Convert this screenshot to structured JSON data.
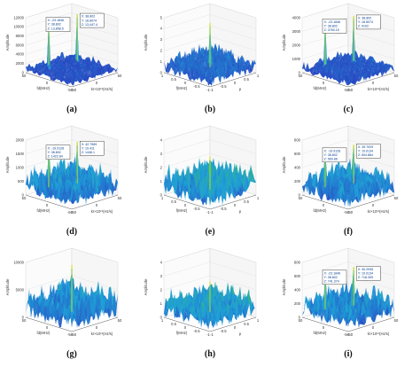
{
  "figure": {
    "colors": {
      "low": "#2a3bbf",
      "mid": "#1fa0d8",
      "high": "#35b779",
      "peak": "#f2e626",
      "tip_box": "#ffffff",
      "tip_border": "#1a1a1a"
    }
  },
  "chart_data": [
    {
      "type": "surface",
      "label": "(a)",
      "zlabel": "Amplitude",
      "xlabel": "fd(MHz)",
      "ylabel": "kr×10¹²(Hz/s)",
      "zticks": [
        "0",
        "2000",
        "4000",
        "6000",
        "8000",
        "10000",
        "12000"
      ],
      "xticks": [
        "-50",
        "0",
        "50"
      ],
      "yticks": [
        "-50",
        "0",
        "50"
      ],
      "noise_level": 0.18,
      "peak_level": 0.95,
      "datatips": [
        {
          "lines": [
            "X: -23.1846",
            "Y: 38.802",
            "Z: 13,858.5"
          ]
        },
        {
          "lines": [
            "X: 38.802",
            "Y: 18.8074",
            "Z: 13,447.4"
          ]
        }
      ]
    },
    {
      "type": "surface",
      "label": "(b)",
      "zlabel": "Amplitude",
      "xlabel": "f(MHz)",
      "ylabel": "p",
      "zticks": [
        "0",
        "1",
        "2",
        "3",
        "4",
        "5"
      ],
      "xticks": [
        "-1",
        "-0.5",
        "0",
        "0.5",
        "1"
      ],
      "yticks": [
        "-1",
        "-0.5",
        "0",
        "0.5",
        "1"
      ],
      "noise_level": 0.35,
      "peak_level": 0.9,
      "datatips": []
    },
    {
      "type": "surface",
      "label": "(c)",
      "zlabel": "Amplitude",
      "xlabel": "fd(MHz)",
      "ylabel": "kr×10¹²(Hz/s)",
      "zticks": [
        "0",
        "1000",
        "2000",
        "3000",
        "4000"
      ],
      "xticks": [
        "-50",
        "0",
        "50"
      ],
      "yticks": [
        "-50",
        "0",
        "50"
      ],
      "noise_level": 0.22,
      "peak_level": 0.92,
      "datatips": [
        {
          "lines": [
            "X: -23.1846",
            "Y: 38.802",
            "Z: 3760.15"
          ]
        },
        {
          "lines": [
            "X: 38.802",
            "Y: 18.8074",
            "Z: 4102"
          ]
        }
      ]
    },
    {
      "type": "surface",
      "label": "(d)",
      "zlabel": "Amplitude",
      "xlabel": "fd(MHz)",
      "ylabel": "kr×10¹²(Hz/s)",
      "zticks": [
        "0",
        "500",
        "1000",
        "1500",
        "2000"
      ],
      "xticks": [
        "-50",
        "0",
        "50"
      ],
      "yticks": [
        "-50",
        "0",
        "50"
      ],
      "noise_level": 0.55,
      "peak_level": 0.85,
      "datatips": [
        {
          "lines": [
            "X: -19.9128",
            "Y: 38.802",
            "Z: 1422.84"
          ]
        },
        {
          "lines": [
            "X: 42.7969",
            "Y: 19.411",
            "Z: 1446.1"
          ]
        }
      ]
    },
    {
      "type": "surface",
      "label": "(e)",
      "zlabel": "Amplitude",
      "xlabel": "f(MHz)",
      "ylabel": "p",
      "zticks": [
        "0",
        "1",
        "2",
        "3",
        "4"
      ],
      "xticks": [
        "-1",
        "-0.5",
        "0",
        "0.5",
        "1"
      ],
      "yticks": [
        "-1",
        "-0.5",
        "0",
        "0.5",
        "1"
      ],
      "noise_level": 0.6,
      "peak_level": 0.7,
      "datatips": []
    },
    {
      "type": "surface",
      "label": "(f)",
      "zlabel": "Amplitude",
      "xlabel": "fd(MHz)",
      "ylabel": "kr×10¹²(Hz/s)",
      "zticks": [
        "0",
        "200",
        "400",
        "600",
        "800"
      ],
      "xticks": [
        "-50",
        "0",
        "50"
      ],
      "yticks": [
        "-50",
        "0",
        "50"
      ],
      "noise_level": 0.5,
      "peak_level": 0.8,
      "datatips": [
        {
          "lines": [
            "X: -19.9128",
            "Y: 38.802",
            "Z: 569.86"
          ]
        },
        {
          "lines": [
            "X: 39.7929",
            "Y: 19.0134",
            "Z: 604.864"
          ]
        }
      ]
    },
    {
      "type": "surface",
      "label": "(g)",
      "zlabel": "Amplitude",
      "xlabel": "fd(MHz)",
      "ylabel": "kr×10¹²(Hz/s)",
      "zticks": [
        "0",
        "5000",
        "10000"
      ],
      "xticks": [
        "-50",
        "0",
        "50"
      ],
      "yticks": [
        "-50",
        "0",
        "50"
      ],
      "noise_level": 0.6,
      "peak_level": 0.95,
      "datatips": []
    },
    {
      "type": "surface",
      "label": "(h)",
      "zlabel": "Amplitude",
      "xlabel": "f(MHz)",
      "ylabel": "p",
      "zticks": [
        "0",
        "1",
        "2",
        "3",
        "4"
      ],
      "xticks": [
        "-1",
        "-0.5",
        "0",
        "0.5",
        "1"
      ],
      "yticks": [
        "-1",
        "-0.5",
        "0",
        "0.5",
        "1"
      ],
      "noise_level": 0.55,
      "peak_level": 0.65,
      "datatips": []
    },
    {
      "type": "surface",
      "label": "(i)",
      "zlabel": "Amplitude",
      "xlabel": "fd(MHz)",
      "ylabel": "kr×10¹²(Hz/s)",
      "zticks": [
        "0",
        "200",
        "400",
        "600",
        "800"
      ],
      "xticks": [
        "-50",
        "0",
        "50"
      ],
      "yticks": [
        "-50",
        "0",
        "50"
      ],
      "noise_level": 0.5,
      "peak_level": 0.8,
      "datatips": [
        {
          "lines": [
            "X: -23.1846",
            "Y: 38.802",
            "Z: 741.374"
          ]
        },
        {
          "lines": [
            "X: 40.2935",
            "Y: 19.0134",
            "Z: 718.305"
          ]
        }
      ]
    }
  ]
}
